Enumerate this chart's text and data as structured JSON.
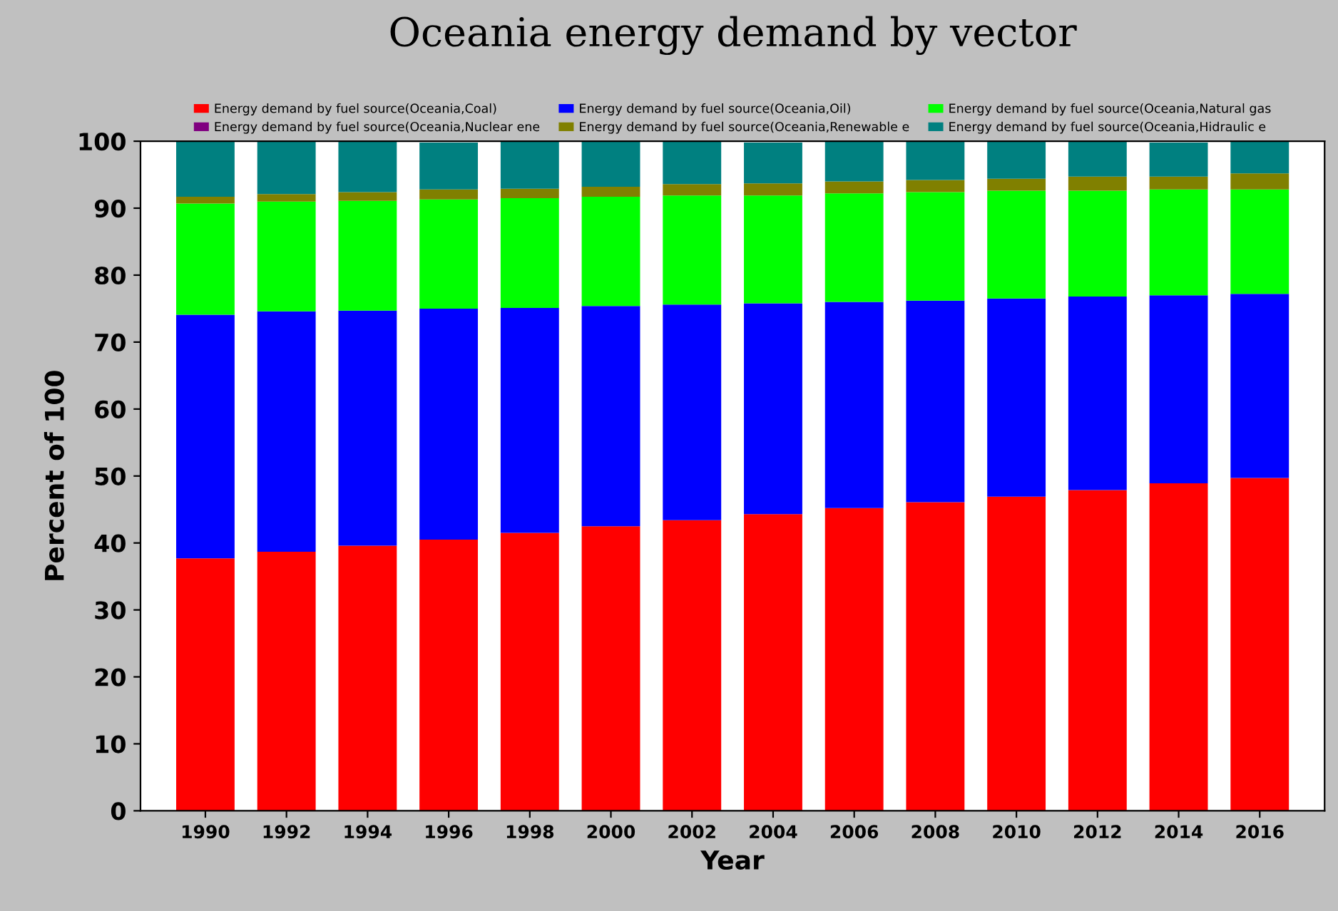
{
  "chart_data": {
    "type": "bar",
    "title": "Oceania energy demand by vector",
    "xlabel": "Year",
    "ylabel": "Percent of 100",
    "categories": [
      "1990",
      "1992",
      "1994",
      "1996",
      "1998",
      "2000",
      "2002",
      "2004",
      "2006",
      "2008",
      "2010",
      "2012",
      "2014",
      "2016"
    ],
    "stacked": true,
    "ylim": [
      0,
      100
    ],
    "yticks": [
      0,
      10,
      20,
      30,
      40,
      50,
      60,
      70,
      80,
      90,
      100
    ],
    "grid": false,
    "legend": "top",
    "series": [
      {
        "name": "Energy demand by fuel source(Oceania,Coal)",
        "color": "#ff0000",
        "values": [
          37.7,
          38.7,
          39.6,
          40.5,
          41.5,
          42.5,
          43.4,
          44.3,
          45.2,
          46.1,
          46.9,
          47.9,
          48.9,
          49.7
        ]
      },
      {
        "name": "Energy demand by fuel source(Oceania,Oil)",
        "color": "#0000ff",
        "values": [
          36.4,
          35.9,
          35.1,
          34.5,
          33.6,
          32.9,
          32.2,
          31.5,
          30.8,
          30.1,
          29.6,
          28.9,
          28.1,
          27.5
        ]
      },
      {
        "name": "Energy demand by fuel source(Oceania,Natural gas",
        "color": "#00ff00",
        "values": [
          16.6,
          16.4,
          16.4,
          16.3,
          16.4,
          16.3,
          16.3,
          16.1,
          16.2,
          16.2,
          16.1,
          15.8,
          15.8,
          15.6
        ]
      },
      {
        "name": "Energy demand by fuel source(Oceania,Nuclear ene",
        "color": "#800080",
        "values": [
          0,
          0,
          0,
          0,
          0,
          0,
          0,
          0,
          0,
          0,
          0,
          0,
          0,
          0
        ]
      },
      {
        "name": "Energy demand by fuel source(Oceania,Renewable e",
        "color": "#808000",
        "values": [
          1.0,
          1.1,
          1.3,
          1.5,
          1.4,
          1.5,
          1.7,
          1.8,
          1.8,
          1.8,
          1.8,
          2.1,
          1.9,
          2.4
        ]
      },
      {
        "name": "Energy demand by fuel source(Oceania,Hidraulic e",
        "color": "#008080",
        "values": [
          8.3,
          7.9,
          7.6,
          7.0,
          7.1,
          6.8,
          6.4,
          6.1,
          6.0,
          5.8,
          5.6,
          5.3,
          5.1,
          4.8
        ]
      }
    ]
  }
}
